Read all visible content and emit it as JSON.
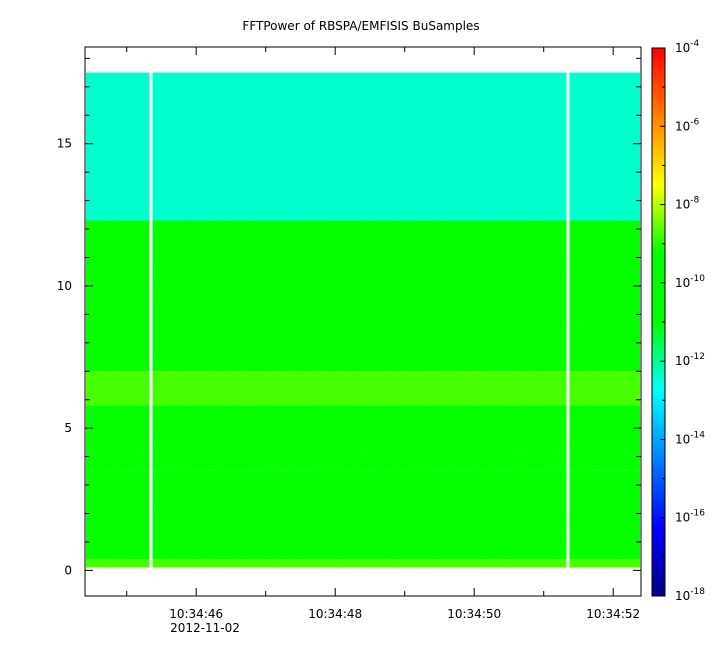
{
  "chart_data": {
    "type": "heatmap",
    "title": "FFTPower of RBSPA/EMFISIS  BuSamples",
    "x_axis": {
      "ticks": [
        "10:34:46",
        "10:34:48",
        "10:34:50",
        "10:34:52"
      ],
      "tick_seconds": [
        46,
        48,
        50,
        52
      ],
      "range_seconds": [
        44.4,
        52.4
      ],
      "date_label": "2012-11-02"
    },
    "y_axis": {
      "ticks": [
        "0",
        "5",
        "10",
        "15"
      ],
      "tick_values": [
        0,
        5,
        10,
        15
      ],
      "range": [
        -0.9,
        18.4
      ]
    },
    "colorbar": {
      "scale": "log",
      "range_exponent": [
        -18,
        -4
      ],
      "ticks": [
        {
          "base": "10",
          "exp": "-4"
        },
        {
          "base": "10",
          "exp": "-6"
        },
        {
          "base": "10",
          "exp": "-8"
        },
        {
          "base": "10",
          "exp": "-10"
        },
        {
          "base": "10",
          "exp": "-12"
        },
        {
          "base": "10",
          "exp": "-14"
        },
        {
          "base": "10",
          "exp": "-16"
        },
        {
          "base": "10",
          "exp": "-18"
        }
      ],
      "tick_exponents": [
        -4,
        -6,
        -8,
        -10,
        -12,
        -14,
        -16,
        -18
      ]
    },
    "data_extent": {
      "y_max": 17.5,
      "y_min": 0.1
    },
    "bands": [
      {
        "y_from": 12.3,
        "y_to": 17.5,
        "log_power": -12.4
      },
      {
        "y_from": 7.0,
        "y_to": 12.3,
        "log_power": -10.6
      },
      {
        "y_from": 5.8,
        "y_to": 7.0,
        "log_power": -8.8
      },
      {
        "y_from": 4.2,
        "y_to": 5.8,
        "log_power": -9.9
      },
      {
        "y_from": 3.5,
        "y_to": 4.2,
        "log_power": -9.8
      },
      {
        "y_from": 0.4,
        "y_to": 3.5,
        "log_power": -10.3
      },
      {
        "y_from": 0.1,
        "y_to": 0.4,
        "log_power": -8.8
      }
    ],
    "gaps_seconds": [
      45.35,
      51.35
    ],
    "grid": false,
    "legend": "colorbar-right"
  }
}
